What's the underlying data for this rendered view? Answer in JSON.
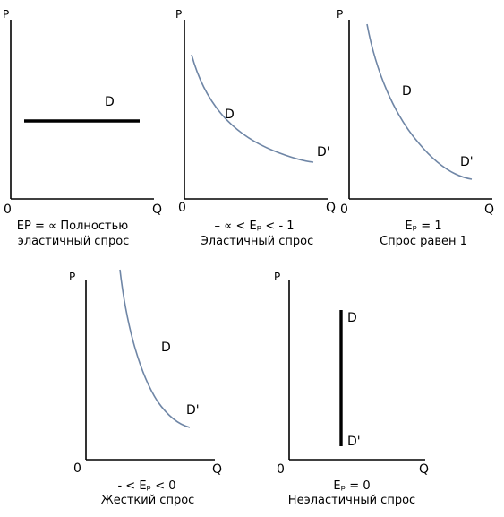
{
  "panels": [
    {
      "id": "perfect",
      "axis_p": "P",
      "axis_q": "Q",
      "origin": "0",
      "curve_label_d": "D",
      "curve_label_d2": "",
      "caption_line1": "EP = ∝ Полностью",
      "caption_line2": "эластичный спрос"
    },
    {
      "id": "elastic",
      "axis_p": "P",
      "axis_q": "Q",
      "origin": "0",
      "curve_label_d": "D",
      "curve_label_d2": "D'",
      "caption_line1": "– ∝  < Eₚ < - 1",
      "caption_line2": "Эластичный спрос"
    },
    {
      "id": "unit",
      "axis_p": "P",
      "axis_q": "Q",
      "origin": "0",
      "curve_label_d": "D",
      "curve_label_d2": "D'",
      "caption_line1": "Eₚ = 1",
      "caption_line2": "Спрос равен 1"
    },
    {
      "id": "inelastic",
      "axis_p": "P",
      "axis_q": "Q",
      "origin": "0",
      "curve_label_d": "D",
      "curve_label_d2": "D'",
      "caption_line1": "- < Eₚ < 0",
      "caption_line2": "Жесткий спрос"
    },
    {
      "id": "perfect-inelastic",
      "axis_p": "P",
      "axis_q": "Q",
      "origin": "0",
      "curve_label_d": "D",
      "curve_label_d2": "D'",
      "caption_line1": "Eₚ = 0",
      "caption_line2": "Неэластичный спрос"
    }
  ]
}
